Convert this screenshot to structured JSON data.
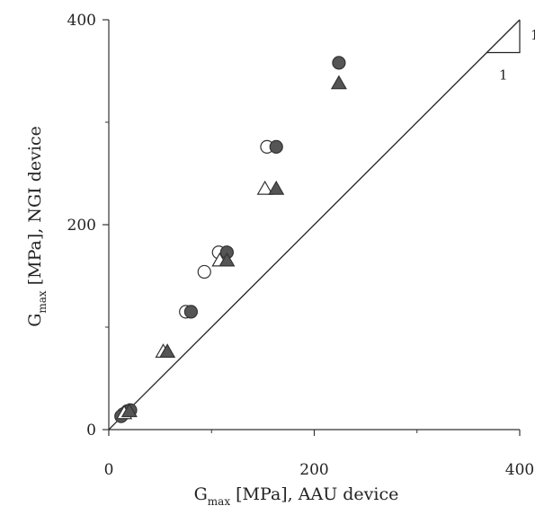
{
  "chart_data": {
    "type": "scatter",
    "xlabel": {
      "main": "G",
      "sub": "max",
      "rest": " [MPa], AAU device"
    },
    "ylabel": {
      "main": "G",
      "sub": "max",
      "rest": " [MPa], NGI device"
    },
    "xlim": [
      0,
      400
    ],
    "ylim": [
      0,
      400
    ],
    "xticks": [
      "0",
      "200",
      "400"
    ],
    "yticks": [
      "0",
      "200",
      "400"
    ],
    "grid": false,
    "slope_triangle_labels": [
      "1",
      "1"
    ],
    "reference_line": {
      "slope": 1,
      "from": [
        0,
        0
      ],
      "to": [
        400,
        400
      ]
    },
    "series": [
      {
        "marker": "circle-open",
        "color": "#ffffff",
        "points": [
          [
            154,
            276
          ],
          [
            107,
            173
          ],
          [
            93,
            154
          ],
          [
            75,
            115
          ],
          [
            14,
            15
          ],
          [
            18,
            18
          ]
        ]
      },
      {
        "marker": "circle-filled",
        "color": "#555555",
        "points": [
          [
            224,
            358
          ],
          [
            163,
            276
          ],
          [
            115,
            173
          ],
          [
            80,
            115
          ],
          [
            21,
            19
          ],
          [
            12,
            13
          ]
        ]
      },
      {
        "marker": "triangle-open",
        "color": "#ffffff",
        "points": [
          [
            152,
            235
          ],
          [
            108,
            165
          ],
          [
            53,
            76
          ],
          [
            15,
            16
          ]
        ]
      },
      {
        "marker": "triangle-filled",
        "color": "#555555",
        "points": [
          [
            224,
            338
          ],
          [
            163,
            235
          ],
          [
            115,
            165
          ],
          [
            57,
            76
          ],
          [
            20,
            18
          ]
        ]
      }
    ]
  }
}
